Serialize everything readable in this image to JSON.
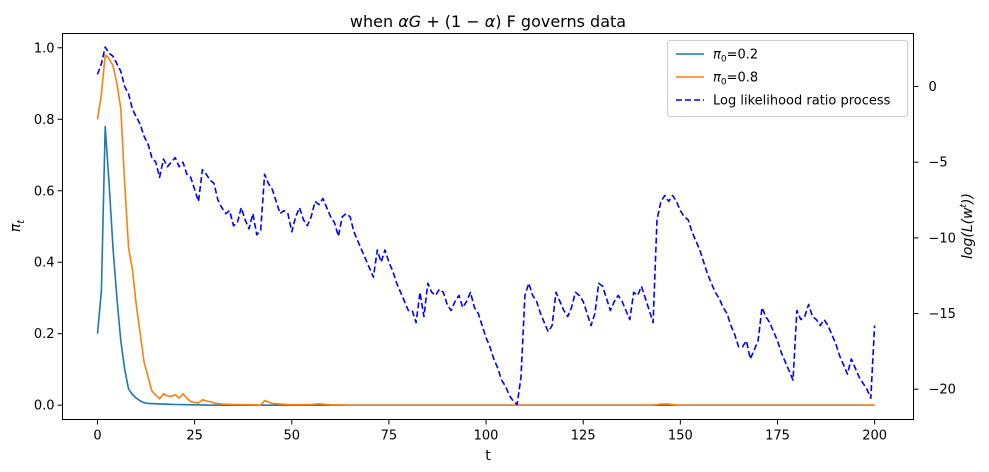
{
  "chart_data": {
    "type": "line",
    "title": "when αG + (1 − α) F governs data",
    "xlabel": "t",
    "ylabel_left": "π_t",
    "ylabel_right": "log(L(w^t))",
    "xlim": [
      -9,
      210
    ],
    "ylim_left": [
      -0.04,
      1.04
    ],
    "ylim_right": [
      -22,
      3.5
    ],
    "x_ticks": [
      0,
      25,
      50,
      75,
      100,
      125,
      150,
      175,
      200
    ],
    "y_ticks_left": [
      "0.0",
      "0.2",
      "0.4",
      "0.6",
      "0.8",
      "1.0"
    ],
    "y_ticks_right": [
      0,
      -5,
      -10,
      -15,
      -20
    ],
    "legend_position": "top-right",
    "series": [
      {
        "name": "π0=0.2",
        "axis": "left",
        "color": "#1f77b4",
        "style": "solid",
        "points": [
          [
            0,
            0.2
          ],
          [
            1,
            0.32
          ],
          [
            2,
            0.78
          ],
          [
            3,
            0.62
          ],
          [
            4,
            0.44
          ],
          [
            5,
            0.3
          ],
          [
            6,
            0.18
          ],
          [
            7,
            0.1
          ],
          [
            8,
            0.045
          ],
          [
            9,
            0.03
          ],
          [
            10,
            0.02
          ],
          [
            11,
            0.012
          ],
          [
            12,
            0.007
          ],
          [
            13,
            0.005
          ],
          [
            15,
            0.004
          ],
          [
            17,
            0.003
          ],
          [
            20,
            0.002
          ],
          [
            25,
            0.001
          ],
          [
            30,
            0.0
          ],
          [
            200,
            0.0
          ]
        ]
      },
      {
        "name": "π0=0.8",
        "axis": "left",
        "color": "#ff7f0e",
        "style": "solid",
        "points": [
          [
            0,
            0.8
          ],
          [
            1,
            0.87
          ],
          [
            2,
            0.98
          ],
          [
            3,
            0.97
          ],
          [
            4,
            0.95
          ],
          [
            5,
            0.9
          ],
          [
            6,
            0.83
          ],
          [
            7,
            0.62
          ],
          [
            8,
            0.44
          ],
          [
            9,
            0.38
          ],
          [
            10,
            0.28
          ],
          [
            11,
            0.2
          ],
          [
            12,
            0.12
          ],
          [
            13,
            0.08
          ],
          [
            14,
            0.04
          ],
          [
            15,
            0.028
          ],
          [
            16,
            0.018
          ],
          [
            17,
            0.032
          ],
          [
            18,
            0.026
          ],
          [
            19,
            0.025
          ],
          [
            20,
            0.029
          ],
          [
            21,
            0.02
          ],
          [
            22,
            0.032
          ],
          [
            23,
            0.02
          ],
          [
            24,
            0.01
          ],
          [
            25,
            0.008
          ],
          [
            26,
            0.006
          ],
          [
            27,
            0.015
          ],
          [
            28,
            0.012
          ],
          [
            29,
            0.01
          ],
          [
            30,
            0.006
          ],
          [
            32,
            0.003
          ],
          [
            35,
            0.002
          ],
          [
            40,
            0.001
          ],
          [
            42,
            0.0
          ],
          [
            43,
            0.013
          ],
          [
            44,
            0.009
          ],
          [
            45,
            0.005
          ],
          [
            47,
            0.003
          ],
          [
            50,
            0.001
          ],
          [
            55,
            0.002
          ],
          [
            57,
            0.004
          ],
          [
            60,
            0.001
          ],
          [
            65,
            0.0
          ],
          [
            143,
            0.0
          ],
          [
            145,
            0.003
          ],
          [
            147,
            0.003
          ],
          [
            149,
            0.0
          ],
          [
            200,
            0.0
          ]
        ]
      },
      {
        "name": "Log likelihood ratio process",
        "axis": "right",
        "color": "#0000ff",
        "style": "dashed",
        "points": [
          [
            0,
            0.8
          ],
          [
            1,
            1.5
          ],
          [
            2,
            2.6
          ],
          [
            3,
            2.2
          ],
          [
            4,
            2.0
          ],
          [
            5,
            1.5
          ],
          [
            6,
            1.0
          ],
          [
            7,
            0.0
          ],
          [
            8,
            -0.5
          ],
          [
            9,
            -1.5
          ],
          [
            10,
            -2.0
          ],
          [
            11,
            -2.5
          ],
          [
            12,
            -3.3
          ],
          [
            13,
            -3.8
          ],
          [
            14,
            -4.7
          ],
          [
            15,
            -5.0
          ],
          [
            16,
            -6.0
          ],
          [
            17,
            -4.8
          ],
          [
            18,
            -5.3
          ],
          [
            19,
            -5.0
          ],
          [
            20,
            -4.7
          ],
          [
            21,
            -5.3
          ],
          [
            22,
            -5.0
          ],
          [
            23,
            -5.8
          ],
          [
            24,
            -6.0
          ],
          [
            25,
            -6.8
          ],
          [
            26,
            -7.6
          ],
          [
            27,
            -5.5
          ],
          [
            28,
            -5.8
          ],
          [
            29,
            -6.2
          ],
          [
            30,
            -6.4
          ],
          [
            31,
            -7.5
          ],
          [
            32,
            -8.0
          ],
          [
            33,
            -8.4
          ],
          [
            34,
            -8.2
          ],
          [
            35,
            -9.2
          ],
          [
            36,
            -9.0
          ],
          [
            37,
            -8.0
          ],
          [
            38,
            -8.8
          ],
          [
            39,
            -9.4
          ],
          [
            40,
            -8.4
          ],
          [
            41,
            -9.8
          ],
          [
            42,
            -9.5
          ],
          [
            43,
            -5.8
          ],
          [
            44,
            -6.4
          ],
          [
            45,
            -6.8
          ],
          [
            46,
            -7.6
          ],
          [
            47,
            -8.4
          ],
          [
            48,
            -8.2
          ],
          [
            49,
            -8.4
          ],
          [
            50,
            -9.6
          ],
          [
            51,
            -8.6
          ],
          [
            52,
            -8.0
          ],
          [
            53,
            -8.8
          ],
          [
            54,
            -9.2
          ],
          [
            55,
            -8.6
          ],
          [
            56,
            -7.6
          ],
          [
            57,
            -7.8
          ],
          [
            58,
            -7.4
          ],
          [
            59,
            -8.0
          ],
          [
            60,
            -8.6
          ],
          [
            61,
            -9.0
          ],
          [
            62,
            -9.9
          ],
          [
            63,
            -8.6
          ],
          [
            64,
            -8.4
          ],
          [
            65,
            -8.6
          ],
          [
            66,
            -9.6
          ],
          [
            67,
            -10.2
          ],
          [
            68,
            -10.8
          ],
          [
            69,
            -11.4
          ],
          [
            70,
            -12.0
          ],
          [
            71,
            -12.6
          ],
          [
            72,
            -10.8
          ],
          [
            73,
            -11.6
          ],
          [
            74,
            -10.8
          ],
          [
            75,
            -11.6
          ],
          [
            76,
            -12.2
          ],
          [
            77,
            -13.0
          ],
          [
            78,
            -13.6
          ],
          [
            79,
            -14.2
          ],
          [
            80,
            -14.8
          ],
          [
            81,
            -14.8
          ],
          [
            82,
            -15.6
          ],
          [
            83,
            -13.6
          ],
          [
            84,
            -15.2
          ],
          [
            85,
            -13.0
          ],
          [
            86,
            -13.6
          ],
          [
            87,
            -13.8
          ],
          [
            88,
            -13.4
          ],
          [
            89,
            -13.6
          ],
          [
            90,
            -14.4
          ],
          [
            91,
            -14.8
          ],
          [
            92,
            -14.2
          ],
          [
            93,
            -13.8
          ],
          [
            94,
            -14.6
          ],
          [
            95,
            -14.2
          ],
          [
            96,
            -13.6
          ],
          [
            97,
            -14.6
          ],
          [
            98,
            -15.0
          ],
          [
            99,
            -15.8
          ],
          [
            100,
            -16.6
          ],
          [
            101,
            -17.2
          ],
          [
            102,
            -18.0
          ],
          [
            103,
            -18.6
          ],
          [
            104,
            -19.4
          ],
          [
            105,
            -19.8
          ],
          [
            106,
            -20.4
          ],
          [
            107,
            -20.8
          ],
          [
            108,
            -21.0
          ],
          [
            109,
            -19.2
          ],
          [
            110,
            -13.8
          ],
          [
            111,
            -13.0
          ],
          [
            112,
            -13.8
          ],
          [
            113,
            -14.2
          ],
          [
            114,
            -15.0
          ],
          [
            115,
            -15.6
          ],
          [
            116,
            -16.2
          ],
          [
            117,
            -15.8
          ],
          [
            118,
            -13.6
          ],
          [
            119,
            -14.2
          ],
          [
            120,
            -14.8
          ],
          [
            121,
            -15.2
          ],
          [
            122,
            -14.6
          ],
          [
            123,
            -13.6
          ],
          [
            124,
            -13.8
          ],
          [
            125,
            -14.2
          ],
          [
            126,
            -15.0
          ],
          [
            127,
            -15.8
          ],
          [
            128,
            -15.0
          ],
          [
            129,
            -13.0
          ],
          [
            130,
            -13.2
          ],
          [
            131,
            -14.0
          ],
          [
            132,
            -14.8
          ],
          [
            133,
            -14.2
          ],
          [
            134,
            -13.8
          ],
          [
            135,
            -14.2
          ],
          [
            136,
            -14.8
          ],
          [
            137,
            -15.4
          ],
          [
            138,
            -13.6
          ],
          [
            139,
            -13.8
          ],
          [
            140,
            -13.2
          ],
          [
            141,
            -14.0
          ],
          [
            142,
            -14.8
          ],
          [
            143,
            -15.6
          ],
          [
            144,
            -8.8
          ],
          [
            145,
            -7.6
          ],
          [
            146,
            -7.2
          ],
          [
            147,
            -7.6
          ],
          [
            148,
            -7.2
          ],
          [
            149,
            -7.6
          ],
          [
            150,
            -8.2
          ],
          [
            151,
            -8.6
          ],
          [
            152,
            -8.8
          ],
          [
            153,
            -9.6
          ],
          [
            154,
            -10.2
          ],
          [
            155,
            -10.8
          ],
          [
            156,
            -11.6
          ],
          [
            157,
            -12.4
          ],
          [
            158,
            -13.0
          ],
          [
            159,
            -13.6
          ],
          [
            160,
            -14.0
          ],
          [
            161,
            -14.6
          ],
          [
            162,
            -15.0
          ],
          [
            163,
            -15.8
          ],
          [
            164,
            -16.4
          ],
          [
            165,
            -17.2
          ],
          [
            166,
            -17.2
          ],
          [
            167,
            -16.8
          ],
          [
            168,
            -18.0
          ],
          [
            169,
            -17.4
          ],
          [
            170,
            -16.8
          ],
          [
            171,
            -14.6
          ],
          [
            172,
            -15.2
          ],
          [
            173,
            -15.6
          ],
          [
            174,
            -16.2
          ],
          [
            175,
            -16.8
          ],
          [
            176,
            -17.6
          ],
          [
            177,
            -18.2
          ],
          [
            178,
            -18.8
          ],
          [
            179,
            -19.4
          ],
          [
            180,
            -14.8
          ],
          [
            181,
            -15.4
          ],
          [
            182,
            -15.2
          ],
          [
            183,
            -14.4
          ],
          [
            184,
            -15.2
          ],
          [
            185,
            -15.4
          ],
          [
            186,
            -15.8
          ],
          [
            187,
            -15.4
          ],
          [
            188,
            -15.8
          ],
          [
            189,
            -16.4
          ],
          [
            190,
            -17.0
          ],
          [
            191,
            -17.8
          ],
          [
            192,
            -18.4
          ],
          [
            193,
            -19.0
          ],
          [
            194,
            -18.0
          ],
          [
            195,
            -18.6
          ],
          [
            196,
            -19.2
          ],
          [
            197,
            -19.6
          ],
          [
            198,
            -20.0
          ],
          [
            199,
            -20.6
          ],
          [
            200,
            -15.8
          ]
        ]
      }
    ]
  }
}
